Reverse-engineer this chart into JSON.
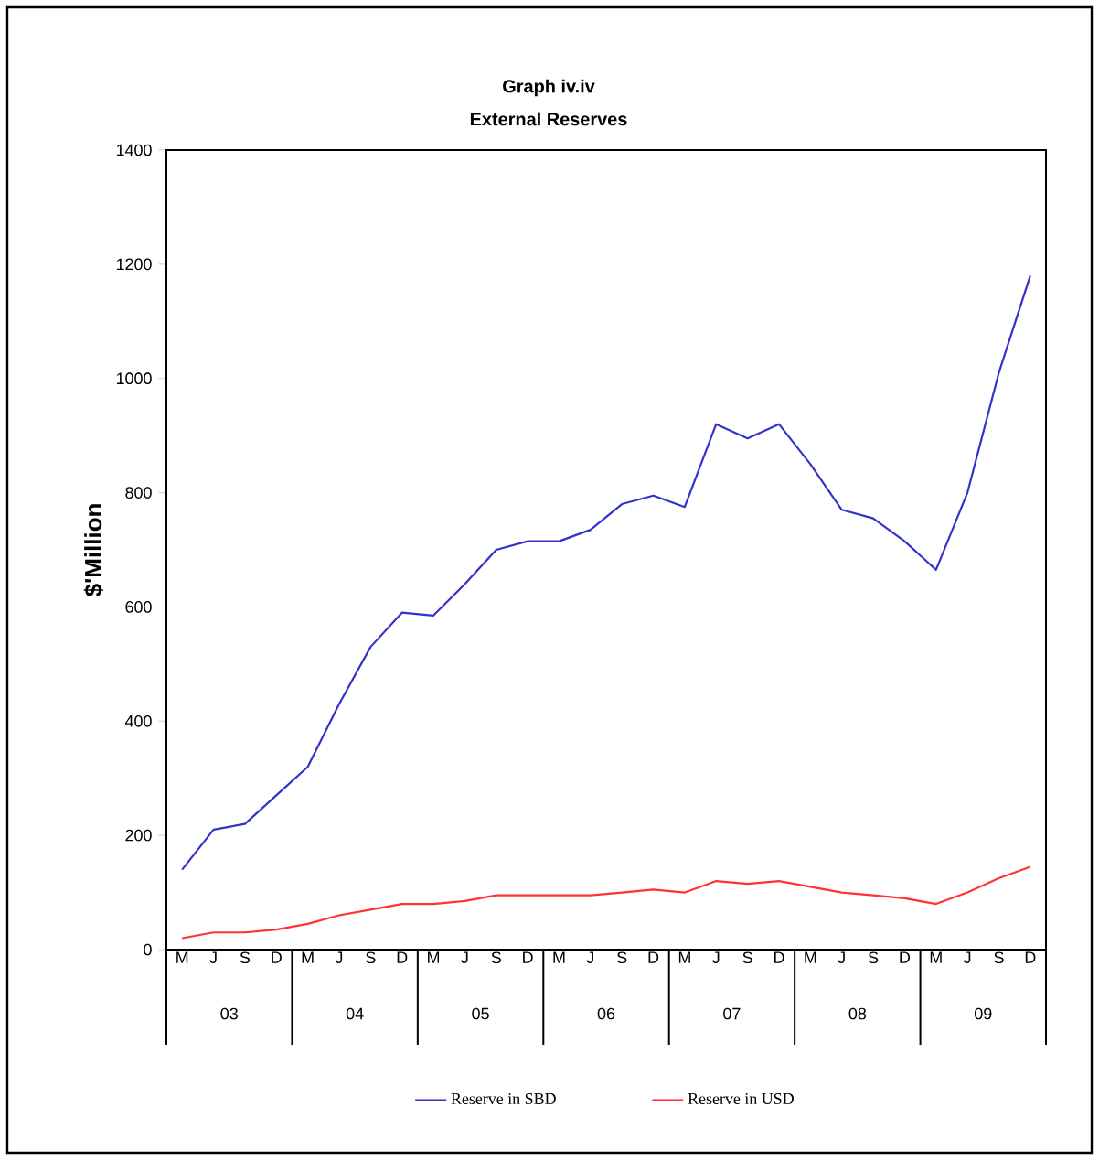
{
  "chart_data": {
    "type": "line",
    "title": "Graph iv.iv",
    "subtitle": "External Reserves",
    "ylabel": "$'Million",
    "categories": [
      "M",
      "J",
      "S",
      "D",
      "M",
      "J",
      "S",
      "D",
      "M",
      "J",
      "S",
      "D",
      "M",
      "J",
      "S",
      "D",
      "M",
      "J",
      "S",
      "D",
      "M",
      "J",
      "S",
      "D",
      "M",
      "J",
      "S",
      "D"
    ],
    "series": [
      {
        "name": "Reserve in SBD",
        "color": "#3333cc",
        "values": [
          140,
          210,
          220,
          270,
          320,
          430,
          530,
          590,
          585,
          640,
          700,
          715,
          715,
          735,
          780,
          795,
          775,
          920,
          895,
          920,
          850,
          770,
          755,
          715,
          665,
          800,
          1010,
          1180
        ]
      },
      {
        "name": "Reserve in USD",
        "color": "#ff3333",
        "values": [
          20,
          30,
          30,
          35,
          45,
          60,
          70,
          80,
          80,
          85,
          95,
          95,
          95,
          95,
          100,
          105,
          100,
          120,
          115,
          120,
          110,
          100,
          95,
          90,
          80,
          100,
          125,
          145
        ]
      }
    ],
    "annotations": [
      "03",
      "04",
      "05",
      "06",
      "07",
      "08",
      "09"
    ],
    "ylim": [
      0,
      1400
    ],
    "yticks": [
      0,
      200,
      400,
      600,
      800,
      1000,
      1200,
      1400
    ],
    "grid": false,
    "legend": "bottom",
    "marker": "none",
    "line_style": "solid"
  }
}
